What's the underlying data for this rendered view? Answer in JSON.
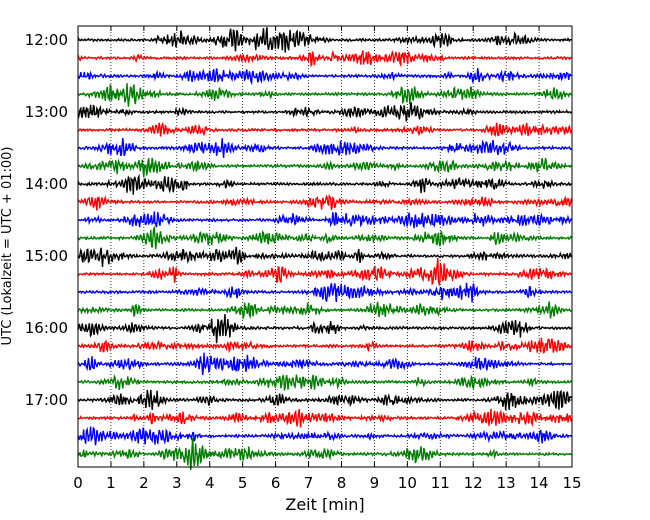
{
  "chart_data": {
    "type": "line",
    "title": "",
    "xlabel": "Zeit  [min]",
    "ylabel": "UTC (Lokalzeit = UTC + 01:00)",
    "xlim": [
      0,
      15
    ],
    "x_ticks": [
      0,
      1,
      2,
      3,
      4,
      5,
      6,
      7,
      8,
      9,
      10,
      11,
      12,
      13,
      14,
      15
    ],
    "x_tick_labels": [
      "0",
      "1",
      "2",
      "3",
      "4",
      "5",
      "6",
      "7",
      "8",
      "9",
      "10",
      "11",
      "12",
      "13",
      "14",
      "15"
    ],
    "y_ticks": [
      "12:00",
      "13:00",
      "14:00",
      "15:00",
      "16:00",
      "17:00"
    ],
    "trace_start_hour": 12.0,
    "trace_interval_min": 15,
    "trace_count": 24,
    "trace_colors": [
      "#000000",
      "#ff0000",
      "#0000ff",
      "#007f00"
    ],
    "grid": "vertical dotted lines at each minute",
    "legend": "none"
  }
}
